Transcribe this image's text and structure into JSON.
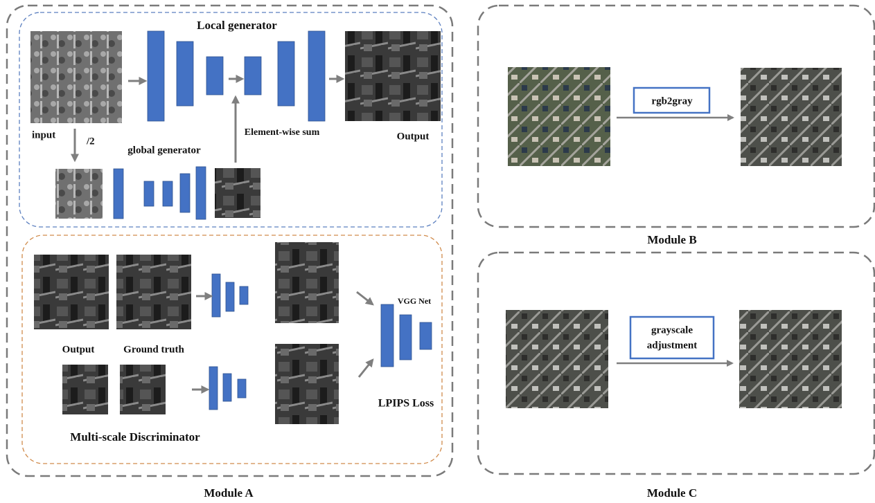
{
  "module_a": {
    "label": "Module A",
    "local_generator": "Local generator",
    "input_label": "input",
    "downsample_label": "/2",
    "global_generator": "global generator",
    "sum_label": "Element-wise sum",
    "output_label": "Output",
    "disc_output_label": "Output",
    "ground_truth_label": "Ground truth",
    "vgg_label": "VGG Net",
    "loss_label": "LPIPS Loss",
    "discriminator_label": "Multi-scale Discriminator"
  },
  "module_b": {
    "label": "Module B",
    "operation": "rgb2gray"
  },
  "module_c": {
    "label": "Module C",
    "operation": [
      "grayscale",
      "adjustment"
    ]
  }
}
